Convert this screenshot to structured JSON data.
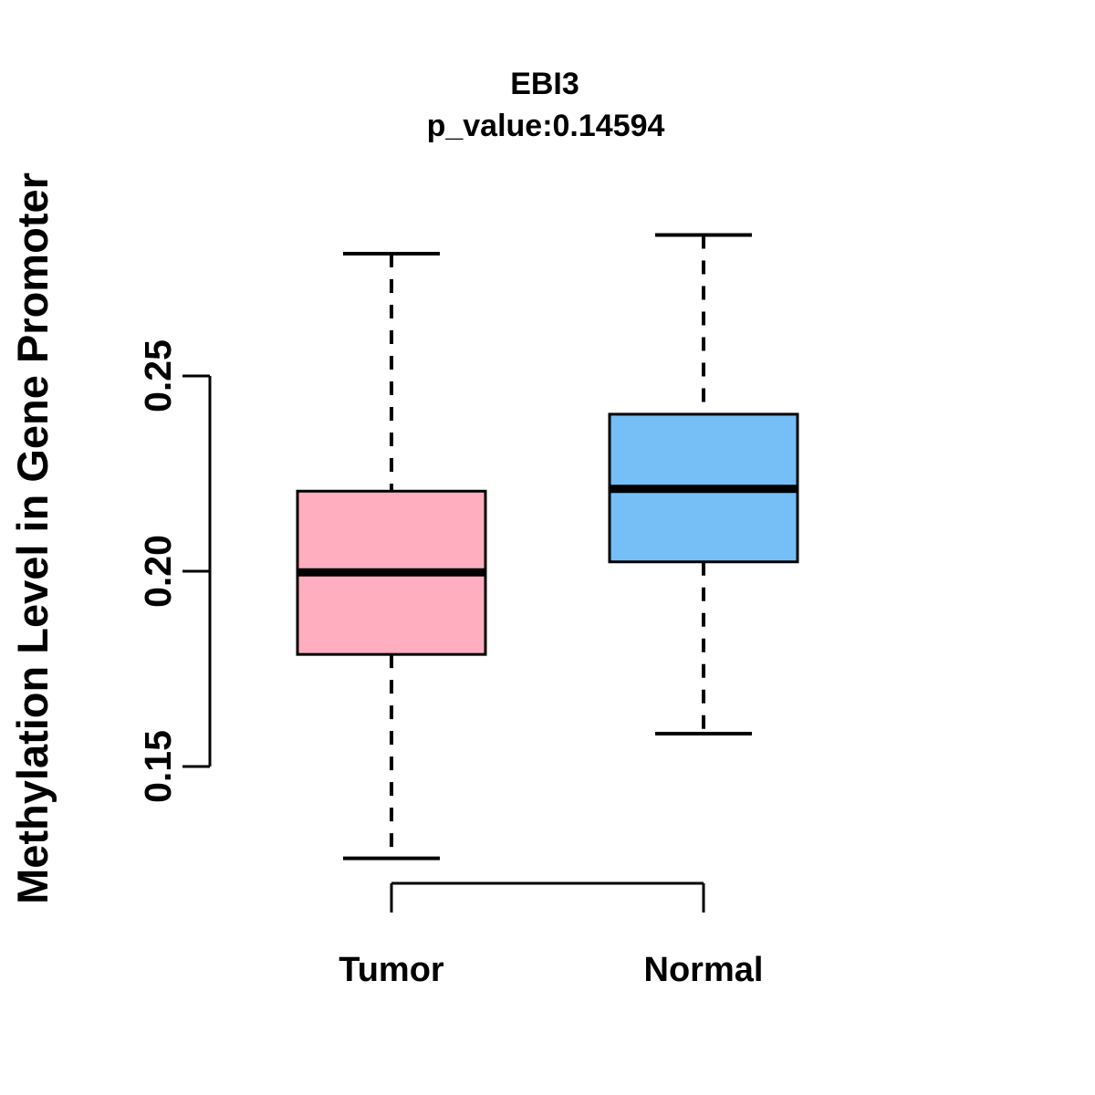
{
  "chart_data": {
    "type": "boxplot",
    "title": "EBI3",
    "subtitle": "p_value:0.14594",
    "ylabel": "Methylation Level in Gene Promoter",
    "xlabel": "",
    "ylim": [
      0.15,
      0.25
    ],
    "y_ticks": [
      0.15,
      0.2,
      0.25
    ],
    "y_tick_labels": [
      "0.15",
      "0.20",
      "0.25"
    ],
    "categories": [
      "Tumor",
      "Normal"
    ],
    "groups": [
      {
        "label": "Tumor",
        "box_color": "#FFAEC0",
        "whisker_low": 0.1265,
        "q1": 0.1787,
        "median": 0.1997,
        "q3": 0.2205,
        "whisker_high": 0.2813
      },
      {
        "label": "Normal",
        "box_color": "#76BEF6",
        "whisker_low": 0.1584,
        "q1": 0.2024,
        "median": 0.2211,
        "q3": 0.2402,
        "whisker_high": 0.2861
      }
    ],
    "style": {
      "background": "#FFFFFF",
      "line_color": "#000000",
      "whisker_style": "dashed",
      "legend": "none",
      "grid": false
    }
  }
}
